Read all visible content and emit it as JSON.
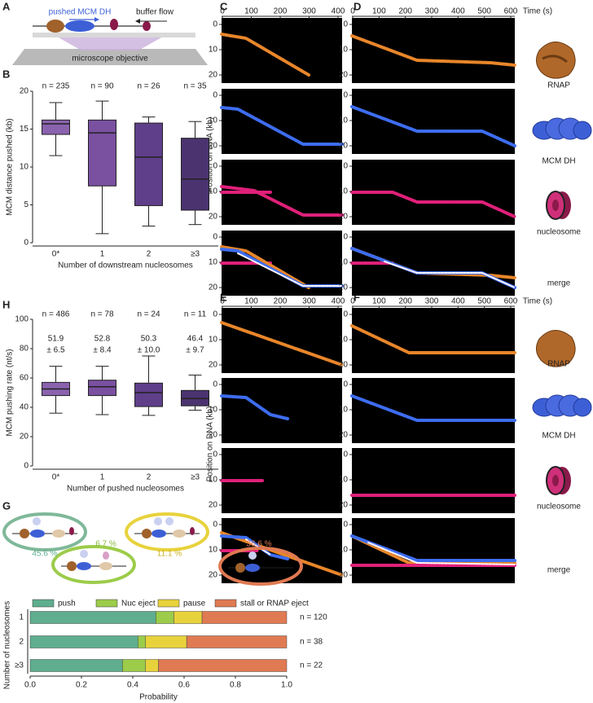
{
  "panel_labels": [
    "A",
    "B",
    "C",
    "D",
    "E",
    "F",
    "G",
    "H"
  ],
  "schematic": {
    "pushed": "pushed MCM DH",
    "flow": "buffer flow",
    "objective": "microscope objective"
  },
  "kymographs": {
    "time_label": "Time (s)",
    "position_label": "Position on DNA (kb)",
    "short_xticks": [
      0,
      100,
      200,
      300,
      400
    ],
    "long_xticks": [
      0,
      100,
      200,
      300,
      400,
      500,
      600
    ],
    "yticks": [
      0,
      10,
      20
    ],
    "row_labels": [
      "RNAP",
      "MCM DH",
      "nucleosome",
      "merge"
    ]
  },
  "g_schematic": {
    "labels": [
      "45.6 %",
      "6.7 %",
      "11.1 %",
      "36.6 %"
    ]
  },
  "chart_data": [
    {
      "type": "box",
      "ylabel": "MCM distance pushed (kb)",
      "xlabel": "Number of downstream nucleosomes",
      "categories": [
        "0*",
        "1",
        "2",
        "≥3"
      ],
      "n_labels": [
        "n = 235",
        "n = 90",
        "n = 26",
        "n = 35"
      ],
      "boxes": [
        {
          "min": 11.5,
          "q1": 14.3,
          "median": 15.7,
          "q3": 16.2,
          "max": 18.5
        },
        {
          "min": 1.2,
          "q1": 7.5,
          "median": 14.5,
          "q3": 16.2,
          "max": 18.7
        },
        {
          "min": 2.2,
          "q1": 4.9,
          "median": 11.3,
          "q3": 15.8,
          "max": 16.6
        },
        {
          "min": 2.4,
          "q1": 4.3,
          "median": 8.4,
          "q3": 13.8,
          "max": 16
        }
      ],
      "colors": [
        "#8a62ae",
        "#7a50a0",
        "#5f3f8a",
        "#4b3370"
      ],
      "ylim": [
        0,
        20
      ],
      "yticks": [
        0,
        5,
        10,
        15,
        20
      ]
    },
    {
      "type": "box",
      "ylabel": "MCM pushing rate (nt/s)",
      "xlabel": "Number of pushed nucleosomes",
      "categories": [
        "0*",
        "1",
        "2",
        "≥3"
      ],
      "n_labels": [
        "n = 486",
        "n = 78",
        "n = 24",
        "n = 11"
      ],
      "mean_labels": [
        "51.9",
        "52.8",
        "50.3",
        "46.4"
      ],
      "sd_labels": [
        "± 6.5",
        "± 8.4",
        "± 10.0",
        "± 9.7"
      ],
      "boxes": [
        {
          "min": 36,
          "q1": 48,
          "median": 52.5,
          "q3": 57,
          "max": 68
        },
        {
          "min": 35,
          "q1": 48,
          "median": 54,
          "q3": 58.5,
          "max": 68
        },
        {
          "min": 34.5,
          "q1": 40.5,
          "median": 50,
          "q3": 56.5,
          "max": 75
        },
        {
          "min": 38,
          "q1": 41,
          "median": 46,
          "q3": 51.5,
          "max": 62
        }
      ],
      "colors": [
        "#8a62ae",
        "#7a50a0",
        "#5f3f8a",
        "#4b3370"
      ],
      "ylim": [
        0,
        100
      ],
      "yticks": [
        0,
        20,
        40,
        60,
        80,
        100
      ]
    },
    {
      "type": "stacked_bar",
      "orientation": "horizontal",
      "legend": "top",
      "ylabel": "Number of nucleosomes",
      "xlabel": "Probability",
      "categories": [
        "1",
        "2",
        "≥3"
      ],
      "n_labels": [
        "n = 120",
        "n = 38",
        "n = 22"
      ],
      "series": [
        {
          "name": "push",
          "color": "#5fae8f",
          "values": [
            0.49,
            0.42,
            0.36
          ]
        },
        {
          "name": "Nuc eject",
          "color": "#9ccc4a",
          "values": [
            0.07,
            0.03,
            0.09
          ]
        },
        {
          "name": "pause",
          "color": "#e8d23c",
          "values": [
            0.11,
            0.16,
            0.05
          ]
        },
        {
          "name": "stall or RNAP eject",
          "color": "#e07a52",
          "values": [
            0.33,
            0.39,
            0.5
          ]
        }
      ],
      "xlim": [
        0,
        1
      ],
      "xticks": [
        {
          "value": 0,
          "label": "0.0"
        },
        0.2,
        0.4,
        0.6,
        0.8,
        {
          "value": 1,
          "label": "1.0"
        }
      ]
    }
  ]
}
